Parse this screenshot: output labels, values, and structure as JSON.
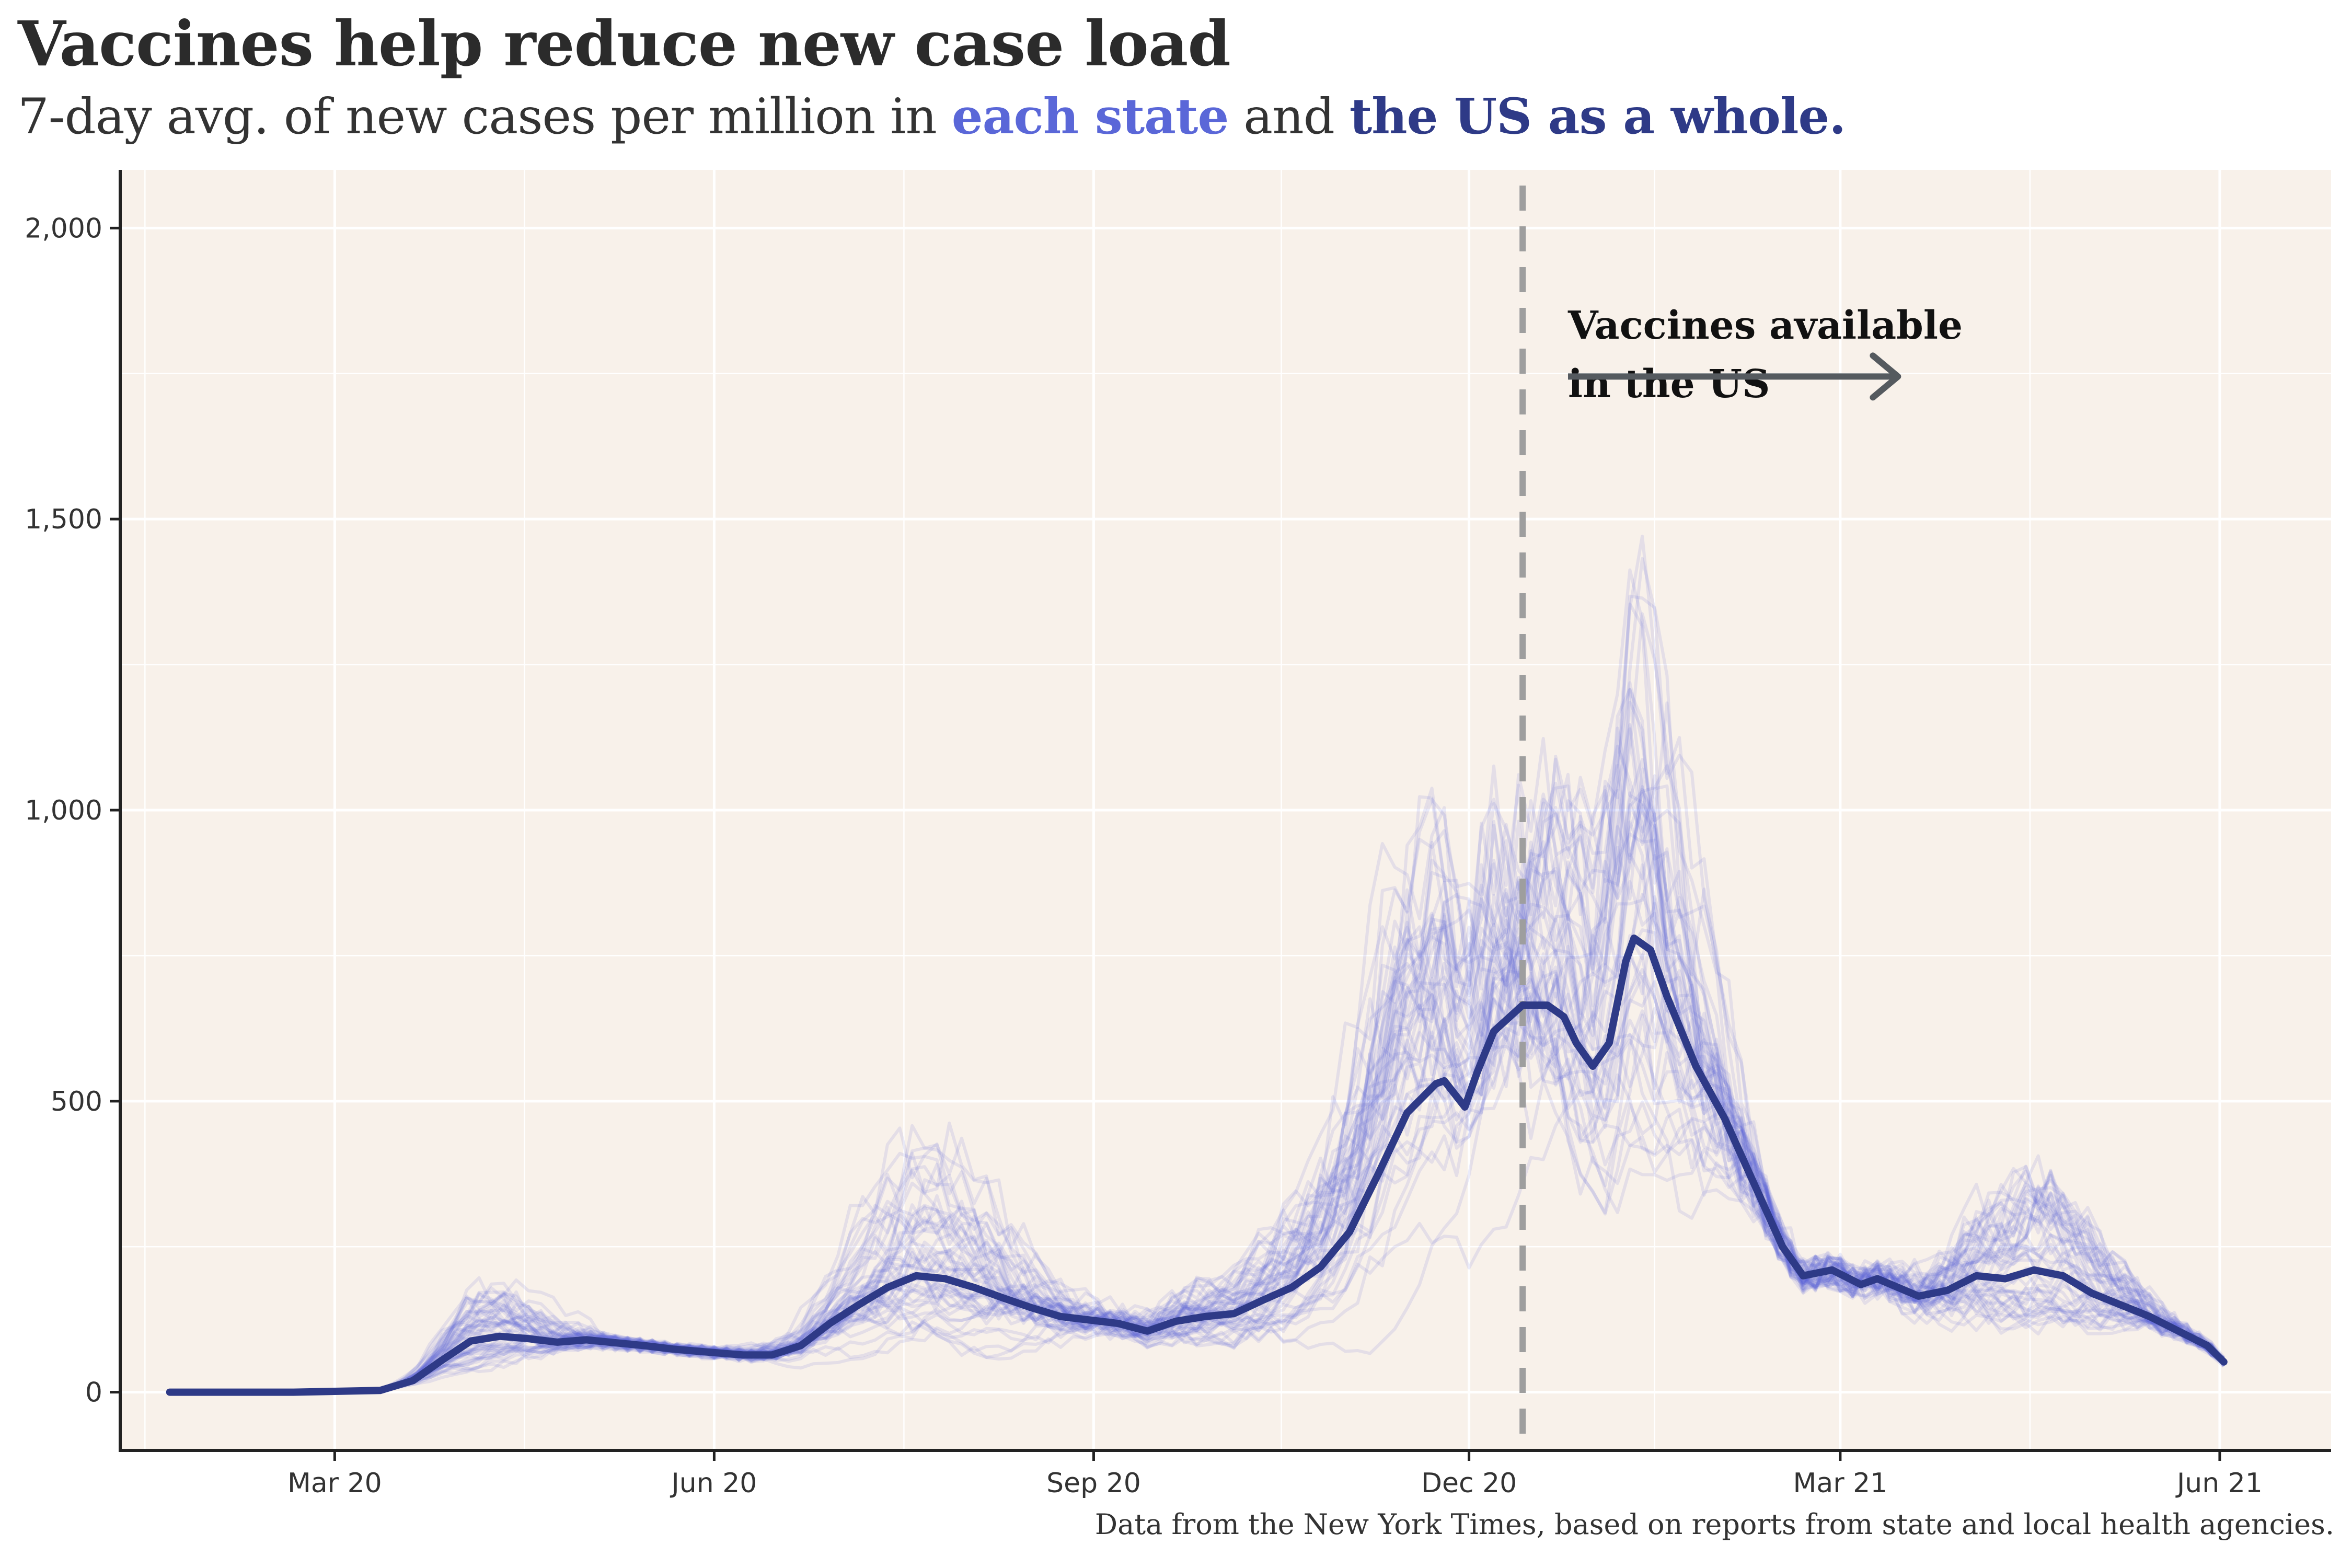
{
  "header": {
    "title": "Vaccines help reduce new case load",
    "subtitle_part1": "7-day avg. of new cases per million in ",
    "subtitle_highlight_states": "each state",
    "subtitle_part2": " and ",
    "subtitle_highlight_us": "the US as a whole."
  },
  "caption": "Data from the New York Times, based on reports from state and local health agencies.",
  "colors": {
    "panel_bg": "#f8f1ea",
    "grid": "#ffffff",
    "state_lines": "#5a67d8",
    "us_line": "#2e3a87",
    "annotation_line": "#9e9e9e",
    "arrow": "#555a5f"
  },
  "chart_data": {
    "type": "line",
    "title": "Vaccines help reduce new case load",
    "subtitle": "7-day avg. of new cases per million in each state and the US as a whole.",
    "xlabel": "",
    "ylabel": "",
    "x_type": "date",
    "xlim": [
      "2020-01-09",
      "2021-06-28"
    ],
    "ylim": [
      -100,
      2100
    ],
    "x_ticks": [
      {
        "date": "2020-03-01",
        "label": "Mar 20"
      },
      {
        "date": "2020-06-01",
        "label": "Jun 20"
      },
      {
        "date": "2020-09-01",
        "label": "Sep 20"
      },
      {
        "date": "2020-12-01",
        "label": "Dec 20"
      },
      {
        "date": "2021-03-01",
        "label": "Mar 21"
      },
      {
        "date": "2021-06-01",
        "label": "Jun 21"
      }
    ],
    "y_ticks": [
      {
        "value": 0,
        "label": "0"
      },
      {
        "value": 500,
        "label": "500"
      },
      {
        "value": 1000,
        "label": "1,000"
      },
      {
        "value": 1500,
        "label": "1,500"
      },
      {
        "value": 2000,
        "label": "2,000"
      }
    ],
    "grid": true,
    "series": [
      {
        "name": "the US as a whole.",
        "points": [
          [
            "2020-01-21",
            0
          ],
          [
            "2020-02-20",
            0
          ],
          [
            "2020-03-12",
            3
          ],
          [
            "2020-03-20",
            20
          ],
          [
            "2020-03-27",
            55
          ],
          [
            "2020-04-03",
            88
          ],
          [
            "2020-04-10",
            96
          ],
          [
            "2020-04-17",
            92
          ],
          [
            "2020-04-24",
            86
          ],
          [
            "2020-05-01",
            90
          ],
          [
            "2020-05-08",
            85
          ],
          [
            "2020-05-15",
            80
          ],
          [
            "2020-05-22",
            74
          ],
          [
            "2020-06-01",
            68
          ],
          [
            "2020-06-08",
            64
          ],
          [
            "2020-06-15",
            64
          ],
          [
            "2020-06-22",
            80
          ],
          [
            "2020-06-29",
            118
          ],
          [
            "2020-07-06",
            150
          ],
          [
            "2020-07-13",
            180
          ],
          [
            "2020-07-20",
            200
          ],
          [
            "2020-07-27",
            195
          ],
          [
            "2020-08-03",
            180
          ],
          [
            "2020-08-10",
            162
          ],
          [
            "2020-08-17",
            145
          ],
          [
            "2020-08-24",
            130
          ],
          [
            "2020-08-31",
            124
          ],
          [
            "2020-09-07",
            118
          ],
          [
            "2020-09-14",
            105
          ],
          [
            "2020-09-21",
            122
          ],
          [
            "2020-09-28",
            130
          ],
          [
            "2020-10-05",
            135
          ],
          [
            "2020-10-12",
            158
          ],
          [
            "2020-10-19",
            180
          ],
          [
            "2020-10-26",
            215
          ],
          [
            "2020-11-02",
            275
          ],
          [
            "2020-11-09",
            375
          ],
          [
            "2020-11-16",
            480
          ],
          [
            "2020-11-23",
            530
          ],
          [
            "2020-11-25",
            535
          ],
          [
            "2020-11-30",
            490
          ],
          [
            "2020-12-03",
            550
          ],
          [
            "2020-12-07",
            620
          ],
          [
            "2020-12-14",
            665
          ],
          [
            "2020-12-20",
            665
          ],
          [
            "2020-12-24",
            645
          ],
          [
            "2020-12-27",
            600
          ],
          [
            "2020-12-31",
            560
          ],
          [
            "2021-01-04",
            600
          ],
          [
            "2021-01-08",
            740
          ],
          [
            "2021-01-10",
            780
          ],
          [
            "2021-01-14",
            760
          ],
          [
            "2021-01-18",
            680
          ],
          [
            "2021-01-25",
            560
          ],
          [
            "2021-02-01",
            470
          ],
          [
            "2021-02-08",
            360
          ],
          [
            "2021-02-15",
            250
          ],
          [
            "2021-02-20",
            200
          ],
          [
            "2021-02-27",
            210
          ],
          [
            "2021-03-06",
            185
          ],
          [
            "2021-03-10",
            195
          ],
          [
            "2021-03-20",
            165
          ],
          [
            "2021-03-27",
            175
          ],
          [
            "2021-04-03",
            200
          ],
          [
            "2021-04-10",
            195
          ],
          [
            "2021-04-17",
            210
          ],
          [
            "2021-04-24",
            200
          ],
          [
            "2021-05-01",
            170
          ],
          [
            "2021-05-08",
            150
          ],
          [
            "2021-05-15",
            130
          ],
          [
            "2021-05-22",
            105
          ],
          [
            "2021-05-29",
            80
          ],
          [
            "2021-06-02",
            52
          ]
        ]
      }
    ],
    "annotations": [
      {
        "type": "vline",
        "date": "2020-12-14",
        "style": "dashed"
      },
      {
        "type": "text",
        "lines": [
          "Vaccines available",
          "in the US"
        ],
        "date": "2020-12-25",
        "value": 1810
      },
      {
        "type": "arrow",
        "from_date": "2020-12-25",
        "to_date": "2021-03-15",
        "value": 1745
      }
    ]
  }
}
